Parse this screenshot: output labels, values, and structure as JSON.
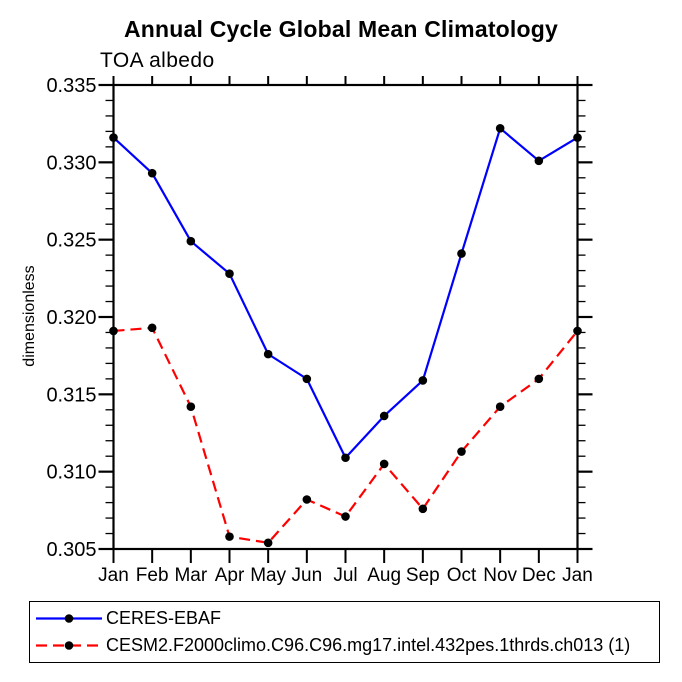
{
  "chart_data": {
    "type": "line",
    "title": "Annual Cycle Global Mean Climatology",
    "subtitle": "TOA albedo",
    "xlabel": "",
    "ylabel": "dimensionless",
    "x_categories": [
      "Jan",
      "Feb",
      "Mar",
      "Apr",
      "May",
      "Jun",
      "Jul",
      "Aug",
      "Sep",
      "Oct",
      "Nov",
      "Dec",
      "Jan"
    ],
    "ylim": [
      0.305,
      0.335
    ],
    "yticks_major": [
      0.305,
      0.31,
      0.315,
      0.32,
      0.325,
      0.33,
      0.335
    ],
    "ytick_labels": [
      "0.305",
      "0.310",
      "0.315",
      "0.320",
      "0.325",
      "0.330",
      "0.335"
    ],
    "ytick_minor_step": 0.001,
    "grid": false,
    "legend_position": "bottom-left-box",
    "axis_color": "#000000",
    "marker_color": "#000000",
    "series": [
      {
        "name": "CERES-EBAF",
        "color": "#0000ff",
        "style": "solid",
        "marker": "circle",
        "values": [
          0.3316,
          0.3293,
          0.3249,
          0.3228,
          0.3176,
          0.316,
          0.3109,
          0.3136,
          0.3159,
          0.3241,
          0.3322,
          0.3301,
          0.3316
        ]
      },
      {
        "name": "CESM2.F2000climo.C96.C96.mg17.intel.432pes.1thrds.ch013 (1)",
        "color": "#ff0000",
        "style": "dashed",
        "marker": "circle",
        "values": [
          0.3191,
          0.3193,
          0.3142,
          0.3058,
          0.3054,
          0.3082,
          0.3071,
          0.3105,
          0.3076,
          0.3113,
          0.3142,
          0.316,
          0.3191
        ]
      }
    ]
  }
}
